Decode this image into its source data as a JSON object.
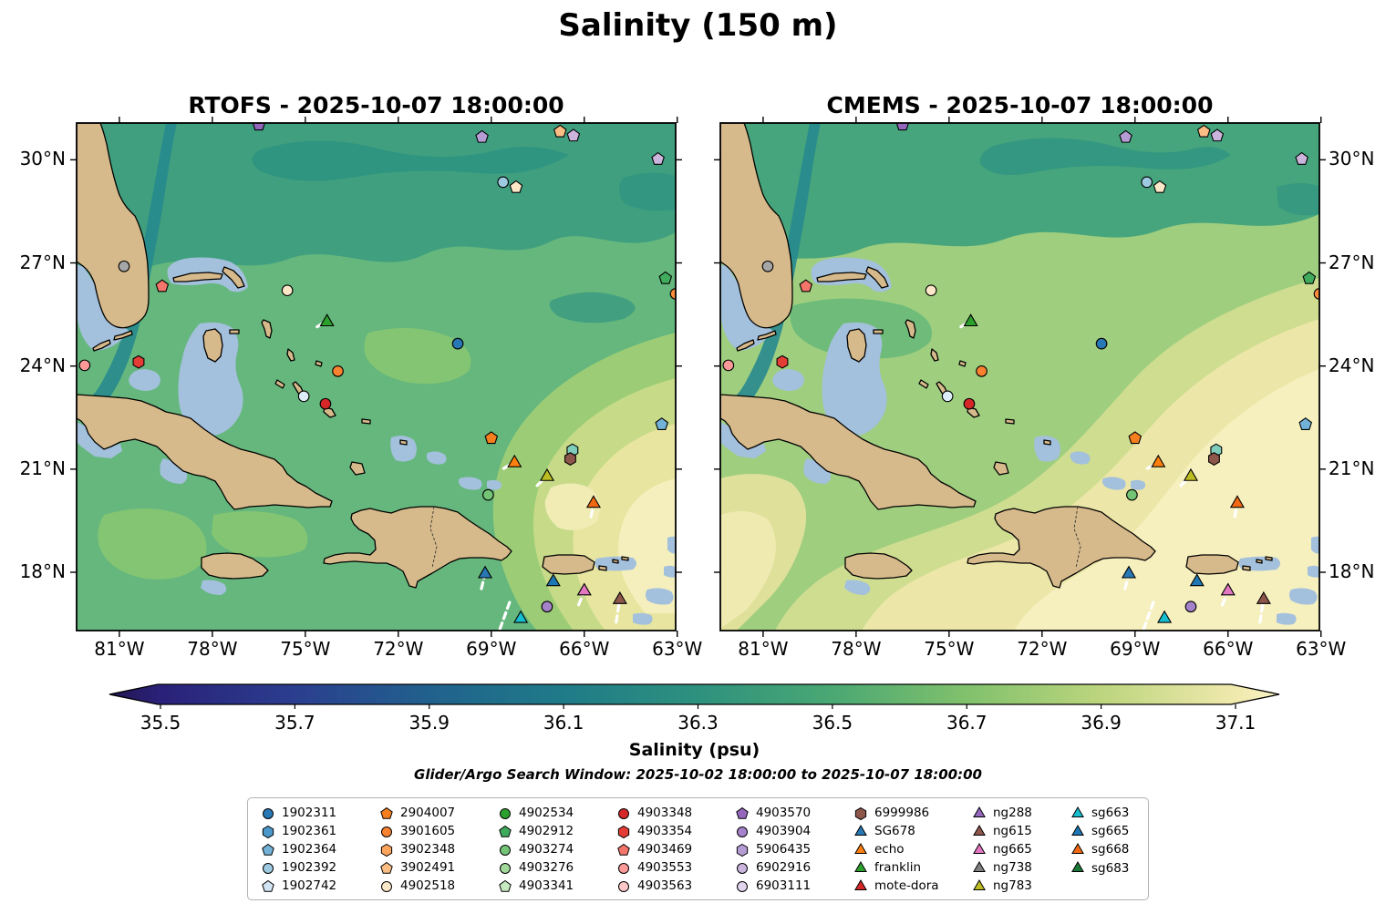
{
  "title": "Salinity (150 m)",
  "panels": [
    {
      "id": "rtofs",
      "title": "RTOFS - 2025-10-07 18:00:00"
    },
    {
      "id": "cmems",
      "title": "CMEMS - 2025-10-07 18:00:00"
    }
  ],
  "axes": {
    "lon_ticks": [
      {
        "label": "81°W",
        "deg": 81
      },
      {
        "label": "78°W",
        "deg": 78
      },
      {
        "label": "75°W",
        "deg": 75
      },
      {
        "label": "72°W",
        "deg": 72
      },
      {
        "label": "69°W",
        "deg": 69
      },
      {
        "label": "66°W",
        "deg": 66
      },
      {
        "label": "63°W",
        "deg": 63
      }
    ],
    "lat_ticks": [
      {
        "label": "30°N",
        "deg": 30
      },
      {
        "label": "27°N",
        "deg": 27
      },
      {
        "label": "24°N",
        "deg": 24
      },
      {
        "label": "21°N",
        "deg": 21
      },
      {
        "label": "18°N",
        "deg": 18
      }
    ]
  },
  "colorbar": {
    "label": "Salinity (psu)",
    "ticks": [
      "35.5",
      "35.7",
      "35.9",
      "36.1",
      "36.3",
      "36.5",
      "36.7",
      "36.9",
      "37.1"
    ],
    "tick_values": [
      35.5,
      35.7,
      35.9,
      36.1,
      36.3,
      36.5,
      36.7,
      36.9,
      37.1
    ],
    "stops": [
      {
        "v": 35.4,
        "c": "#221650"
      },
      {
        "v": 35.5,
        "c": "#2a2179"
      },
      {
        "v": 35.7,
        "c": "#2b3e8f"
      },
      {
        "v": 35.9,
        "c": "#21618d"
      },
      {
        "v": 36.1,
        "c": "#1f7b88"
      },
      {
        "v": 36.3,
        "c": "#2e917e"
      },
      {
        "v": 36.5,
        "c": "#4aa873"
      },
      {
        "v": 36.7,
        "c": "#81c16c"
      },
      {
        "v": 36.9,
        "c": "#bcd57e"
      },
      {
        "v": 37.1,
        "c": "#f0e9ad"
      },
      {
        "v": 37.2,
        "c": "#f9f3c6"
      }
    ]
  },
  "search_window": "Glider/Argo Search Window: 2025-10-02 18:00:00 to 2025-10-07 18:00:00",
  "legend": {
    "columns": [
      [
        {
          "label": "1902311",
          "shape": "circle",
          "color": "#2878b5"
        },
        {
          "label": "1902361",
          "shape": "hexagon",
          "color": "#4b97c9"
        },
        {
          "label": "1902364",
          "shape": "pentagon",
          "color": "#73b2d8"
        },
        {
          "label": "1902392",
          "shape": "circle",
          "color": "#9ecae1"
        },
        {
          "label": "1902742",
          "shape": "pentagon",
          "color": "#d3e4f3"
        }
      ],
      [
        {
          "label": "2904007",
          "shape": "pentagon",
          "color": "#f57f1f"
        },
        {
          "label": "3901605",
          "shape": "circle",
          "color": "#f98230"
        },
        {
          "label": "3902348",
          "shape": "hexagon",
          "color": "#fda45c"
        },
        {
          "label": "3902491",
          "shape": "pentagon",
          "color": "#fdbe85"
        },
        {
          "label": "4902518",
          "shape": "circle",
          "color": "#fce8c8"
        }
      ],
      [
        {
          "label": "4902534",
          "shape": "circle",
          "color": "#2ca02c"
        },
        {
          "label": "4902912",
          "shape": "pentagon",
          "color": "#41ab5d"
        },
        {
          "label": "4903274",
          "shape": "circle",
          "color": "#74c476"
        },
        {
          "label": "4903276",
          "shape": "circle",
          "color": "#a1d99b"
        },
        {
          "label": "4903341",
          "shape": "pentagon",
          "color": "#c7e9c0"
        }
      ],
      [
        {
          "label": "4903348",
          "shape": "circle",
          "color": "#d62728"
        },
        {
          "label": "4903354",
          "shape": "hexagon",
          "color": "#e33d36"
        },
        {
          "label": "4903469",
          "shape": "pentagon",
          "color": "#f4756a"
        },
        {
          "label": "4903553",
          "shape": "circle",
          "color": "#fb9a99"
        },
        {
          "label": "4903563",
          "shape": "circle",
          "color": "#fdc9c8"
        }
      ],
      [
        {
          "label": "4903570",
          "shape": "pentagon",
          "color": "#9467bd"
        },
        {
          "label": "4903904",
          "shape": "circle",
          "color": "#a583cb"
        },
        {
          "label": "5906435",
          "shape": "hexagon",
          "color": "#b69cd4"
        },
        {
          "label": "6902916",
          "shape": "circle",
          "color": "#cbb5dd"
        },
        {
          "label": "6903111",
          "shape": "circle",
          "color": "#e2d4ec"
        }
      ],
      [
        {
          "label": "6999986",
          "shape": "hexagon",
          "color": "#8c564b"
        },
        {
          "label": "SG678",
          "shape": "triangle",
          "color": "#2878b5"
        },
        {
          "label": "echo",
          "shape": "triangle",
          "color": "#ff7f0e"
        },
        {
          "label": "franklin",
          "shape": "triangle",
          "color": "#2ca02c"
        },
        {
          "label": "mote-dora",
          "shape": "triangle",
          "color": "#d62728"
        }
      ],
      [
        {
          "label": "ng288",
          "shape": "triangle",
          "color": "#9467bd"
        },
        {
          "label": "ng615",
          "shape": "triangle",
          "color": "#8c564b"
        },
        {
          "label": "ng665",
          "shape": "triangle",
          "color": "#e377c2"
        },
        {
          "label": "ng738",
          "shape": "triangle",
          "color": "#7f7f7f"
        },
        {
          "label": "ng783",
          "shape": "triangle",
          "color": "#bcbd22"
        }
      ],
      [
        {
          "label": "sg663",
          "shape": "triangle",
          "color": "#17becf"
        },
        {
          "label": "sg665",
          "shape": "triangle",
          "color": "#1f77b4"
        },
        {
          "label": "sg668",
          "shape": "triangle",
          "color": "#f16913"
        },
        {
          "label": "sg683",
          "shape": "triangle",
          "color": "#1b7837"
        }
      ]
    ]
  },
  "chart_data": {
    "type": "heatmap",
    "description": "Two-panel geographic salinity field comparison at 150 m with Argo float and glider positions",
    "models": [
      "RTOFS",
      "CMEMS"
    ],
    "valid_time": "2025-10-07 18:00:00",
    "variable": "Salinity",
    "units": "psu",
    "depth_m": 150,
    "extent": {
      "lon_west": 82.38,
      "lon_east": 63.05,
      "lat_south": 16.3,
      "lat_north": 31.07
    },
    "colorbar_range": [
      35.4,
      37.2
    ],
    "platform_markers": [
      {
        "lon": 76.5,
        "lat": 31.02,
        "shape": "pentagon",
        "color": "#9467bd"
      },
      {
        "lon": 69.3,
        "lat": 30.66,
        "shape": "pentagon",
        "color": "#b69cd4"
      },
      {
        "lon": 66.78,
        "lat": 30.82,
        "shape": "pentagon",
        "color": "#fdbe85"
      },
      {
        "lon": 66.35,
        "lat": 30.7,
        "shape": "pentagon",
        "color": "#cbb5dd"
      },
      {
        "lon": 63.62,
        "lat": 30.02,
        "shape": "pentagon",
        "color": "#cbb5dd"
      },
      {
        "lon": 68.62,
        "lat": 29.35,
        "shape": "circle",
        "color": "#9ecae1"
      },
      {
        "lon": 68.2,
        "lat": 29.2,
        "shape": "pentagon",
        "color": "#fce8c8"
      },
      {
        "lon": 63.38,
        "lat": 26.55,
        "shape": "pentagon",
        "color": "#41ab5d"
      },
      {
        "lon": 63.05,
        "lat": 26.1,
        "shape": "circle",
        "color": "#fd8d3c"
      },
      {
        "lon": 79.62,
        "lat": 26.32,
        "shape": "pentagon",
        "color": "#f4756a"
      },
      {
        "lon": 75.58,
        "lat": 26.2,
        "shape": "circle",
        "color": "#fce8c8"
      },
      {
        "lon": 80.85,
        "lat": 26.9,
        "shape": "circle",
        "color": "#a6a6a6"
      },
      {
        "lon": 74.3,
        "lat": 25.28,
        "shape": "triangle",
        "color": "#2ca02c"
      },
      {
        "lon": 70.08,
        "lat": 24.65,
        "shape": "circle",
        "color": "#2878b5"
      },
      {
        "lon": 80.38,
        "lat": 24.12,
        "shape": "hexagon",
        "color": "#e33d36"
      },
      {
        "lon": 82.12,
        "lat": 24.02,
        "shape": "circle",
        "color": "#fb9a99"
      },
      {
        "lon": 73.95,
        "lat": 23.85,
        "shape": "circle",
        "color": "#f98230"
      },
      {
        "lon": 75.05,
        "lat": 23.12,
        "shape": "circle",
        "color": "#ddeefa"
      },
      {
        "lon": 74.35,
        "lat": 22.9,
        "shape": "circle",
        "color": "#d62728"
      },
      {
        "lon": 63.5,
        "lat": 22.3,
        "shape": "pentagon",
        "color": "#73b2d8"
      },
      {
        "lon": 69.0,
        "lat": 21.9,
        "shape": "pentagon",
        "color": "#f57f1f"
      },
      {
        "lon": 66.38,
        "lat": 21.55,
        "shape": "hexagon",
        "color": "#7fcdbb"
      },
      {
        "lon": 68.25,
        "lat": 21.18,
        "shape": "triangle",
        "color": "#ff7f0e"
      },
      {
        "lon": 66.45,
        "lat": 21.3,
        "shape": "hexagon",
        "color": "#8c564b"
      },
      {
        "lon": 67.2,
        "lat": 20.78,
        "shape": "triangle",
        "color": "#bcbd22"
      },
      {
        "lon": 69.1,
        "lat": 20.25,
        "shape": "circle",
        "color": "#74c476"
      },
      {
        "lon": 65.7,
        "lat": 20.0,
        "shape": "triangle",
        "color": "#f16913"
      },
      {
        "lon": 69.2,
        "lat": 17.95,
        "shape": "triangle",
        "color": "#2878b5"
      },
      {
        "lon": 67.0,
        "lat": 17.72,
        "shape": "triangle",
        "color": "#1f77b4"
      },
      {
        "lon": 66.0,
        "lat": 17.45,
        "shape": "triangle",
        "color": "#e377c2"
      },
      {
        "lon": 64.85,
        "lat": 17.2,
        "shape": "triangle",
        "color": "#8c564b"
      },
      {
        "lon": 67.2,
        "lat": 17.0,
        "shape": "circle",
        "color": "#a583cb"
      },
      {
        "lon": 68.05,
        "lat": 16.65,
        "shape": "triangle",
        "color": "#17becf"
      }
    ],
    "glider_tracks": [
      [
        [
          74.62,
          25.14
        ],
        [
          74.33,
          25.3
        ]
      ],
      [
        [
          68.6,
          21.02
        ],
        [
          68.27,
          21.2
        ]
      ],
      [
        [
          67.52,
          20.52
        ],
        [
          67.22,
          20.8
        ]
      ],
      [
        [
          65.78,
          19.62
        ],
        [
          65.7,
          20.0
        ]
      ],
      [
        [
          69.32,
          17.52
        ],
        [
          69.2,
          17.95
        ]
      ],
      [
        [
          68.72,
          16.35
        ],
        [
          68.4,
          17.15
        ]
      ],
      [
        [
          66.18,
          17.05
        ],
        [
          66.0,
          17.45
        ]
      ],
      [
        [
          64.97,
          16.55
        ],
        [
          64.86,
          17.18
        ]
      ]
    ]
  }
}
